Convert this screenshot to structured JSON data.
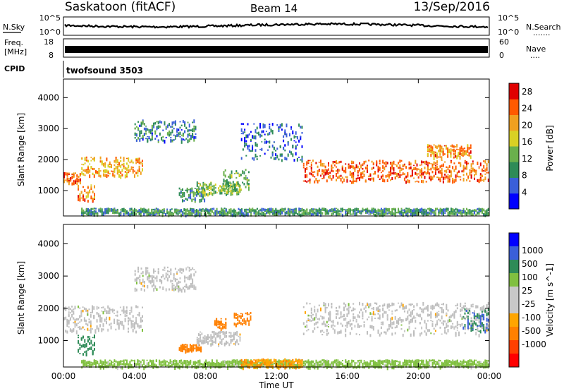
{
  "header": {
    "station": "Saskatoon (fitACF)",
    "beam": "Beam 14",
    "date": "13/Sep/2016"
  },
  "top_panels": {
    "nsky": {
      "label": "N.Sky",
      "top": "10^5",
      "bottom": "10^0"
    },
    "nsearch": {
      "label": "N.Search",
      "top": "10^5",
      "bottom": "10^0",
      "dots": "......."
    },
    "freq": {
      "label_line1": "Freq.",
      "label_line2": "[MHz]",
      "top": "18",
      "bottom": "8"
    },
    "nave": {
      "label": "Nave",
      "top": "60",
      "bottom": "0",
      "dots": "...."
    },
    "cpid": {
      "label": "CPID",
      "value": "twofsound 3503"
    }
  },
  "colors": {
    "power": [
      "#0000ff",
      "#3a5fd9",
      "#2e8b57",
      "#6ab04c",
      "#d9d024",
      "#f0a020",
      "#ff5a00",
      "#e00000"
    ],
    "velocity": [
      "#ff0000",
      "#ff4000",
      "#ff8000",
      "#ffa500",
      "#c8c8c8",
      "#c8c8c8",
      "#80c040",
      "#2e8b57",
      "#3a5fd9",
      "#0000ff"
    ],
    "ground_scatter": "#bebebe"
  },
  "chart_data": [
    {
      "type": "heatmap",
      "title": "Power",
      "xlabel": "Time UT",
      "ylabel": "Slant Range [km]",
      "xlim": [
        0,
        24
      ],
      "ylim": [
        180,
        4600
      ],
      "x_ticks": [
        "00:00",
        "04:00",
        "08:00",
        "12:00",
        "16:00",
        "20:00",
        "00:00"
      ],
      "y_ticks": [
        "1000",
        "2000",
        "3000",
        "4000"
      ],
      "colorbar": {
        "label": "Power [dB]",
        "range": [
          0,
          30
        ],
        "ticks": [
          "4",
          "8",
          "12",
          "16",
          "20",
          "24",
          "28"
        ]
      },
      "echo_bands": [
        {
          "t_start": 0.0,
          "t_end": 1.0,
          "range_start": 1250,
          "range_end": 1600,
          "power_db": 24
        },
        {
          "t_start": 0.8,
          "t_end": 1.8,
          "range_start": 700,
          "range_end": 1200,
          "power_db": 22
        },
        {
          "t_start": 1.0,
          "t_end": 4.5,
          "range_start": 1500,
          "range_end": 2100,
          "power_db": 20
        },
        {
          "t_start": 4.0,
          "t_end": 7.5,
          "range_start": 2600,
          "range_end": 3300,
          "power_db": 8
        },
        {
          "t_start": 6.5,
          "t_end": 8.0,
          "range_start": 700,
          "range_end": 1100,
          "power_db": 10
        },
        {
          "t_start": 7.5,
          "t_end": 10.0,
          "range_start": 900,
          "range_end": 1300,
          "power_db": 14
        },
        {
          "t_start": 9.0,
          "t_end": 10.5,
          "range_start": 1000,
          "range_end": 1700,
          "power_db": 12
        },
        {
          "t_start": 10.0,
          "t_end": 13.5,
          "range_start": 2000,
          "range_end": 3200,
          "power_db": 6
        },
        {
          "t_start": 13.5,
          "t_end": 24.0,
          "range_start": 1300,
          "range_end": 2000,
          "power_db": 24
        },
        {
          "t_start": 20.5,
          "t_end": 23.0,
          "range_start": 2100,
          "range_end": 2500,
          "power_db": 22
        },
        {
          "t_start": 1.0,
          "t_end": 24.0,
          "range_start": 250,
          "range_end": 450,
          "power_db": 10
        }
      ]
    },
    {
      "type": "heatmap",
      "title": "Velocity",
      "xlabel": "Time UT",
      "ylabel": "Slant Range [km]",
      "xlim": [
        0,
        24
      ],
      "ylim": [
        180,
        4600
      ],
      "x_ticks": [
        "00:00",
        "04:00",
        "08:00",
        "12:00",
        "16:00",
        "20:00",
        "00:00"
      ],
      "y_ticks": [
        "1000",
        "2000",
        "3000",
        "4000"
      ],
      "colorbar": {
        "label": "Velocity [m s^-1]",
        "ticks": [
          "1000",
          "500",
          "100",
          "25",
          "-25",
          "-100",
          "-500",
          "-1000"
        ]
      },
      "echo_bands": [
        {
          "t_start": 0.0,
          "t_end": 4.5,
          "range_start": 1300,
          "range_end": 2100,
          "velocity": 0
        },
        {
          "t_start": 0.8,
          "t_end": 1.8,
          "range_start": 600,
          "range_end": 1200,
          "velocity": 300
        },
        {
          "t_start": 4.0,
          "t_end": 7.5,
          "range_start": 2600,
          "range_end": 3300,
          "velocity": 0
        },
        {
          "t_start": 6.5,
          "t_end": 7.8,
          "range_start": 700,
          "range_end": 900,
          "velocity": -200
        },
        {
          "t_start": 7.5,
          "t_end": 10.0,
          "range_start": 900,
          "range_end": 1300,
          "velocity": 0
        },
        {
          "t_start": 8.5,
          "t_end": 9.2,
          "range_start": 1400,
          "range_end": 1700,
          "velocity": -300
        },
        {
          "t_start": 9.6,
          "t_end": 10.6,
          "range_start": 1500,
          "range_end": 1900,
          "velocity": -200
        },
        {
          "t_start": 13.5,
          "t_end": 24.0,
          "range_start": 1200,
          "range_end": 2200,
          "velocity": 0
        },
        {
          "t_start": 22.5,
          "t_end": 24.0,
          "range_start": 1300,
          "range_end": 2000,
          "velocity": 500
        },
        {
          "t_start": 1.0,
          "t_end": 24.0,
          "range_start": 200,
          "range_end": 420,
          "velocity": 60
        },
        {
          "t_start": 10.0,
          "t_end": 13.5,
          "range_start": 200,
          "range_end": 450,
          "velocity": -80
        }
      ]
    }
  ]
}
